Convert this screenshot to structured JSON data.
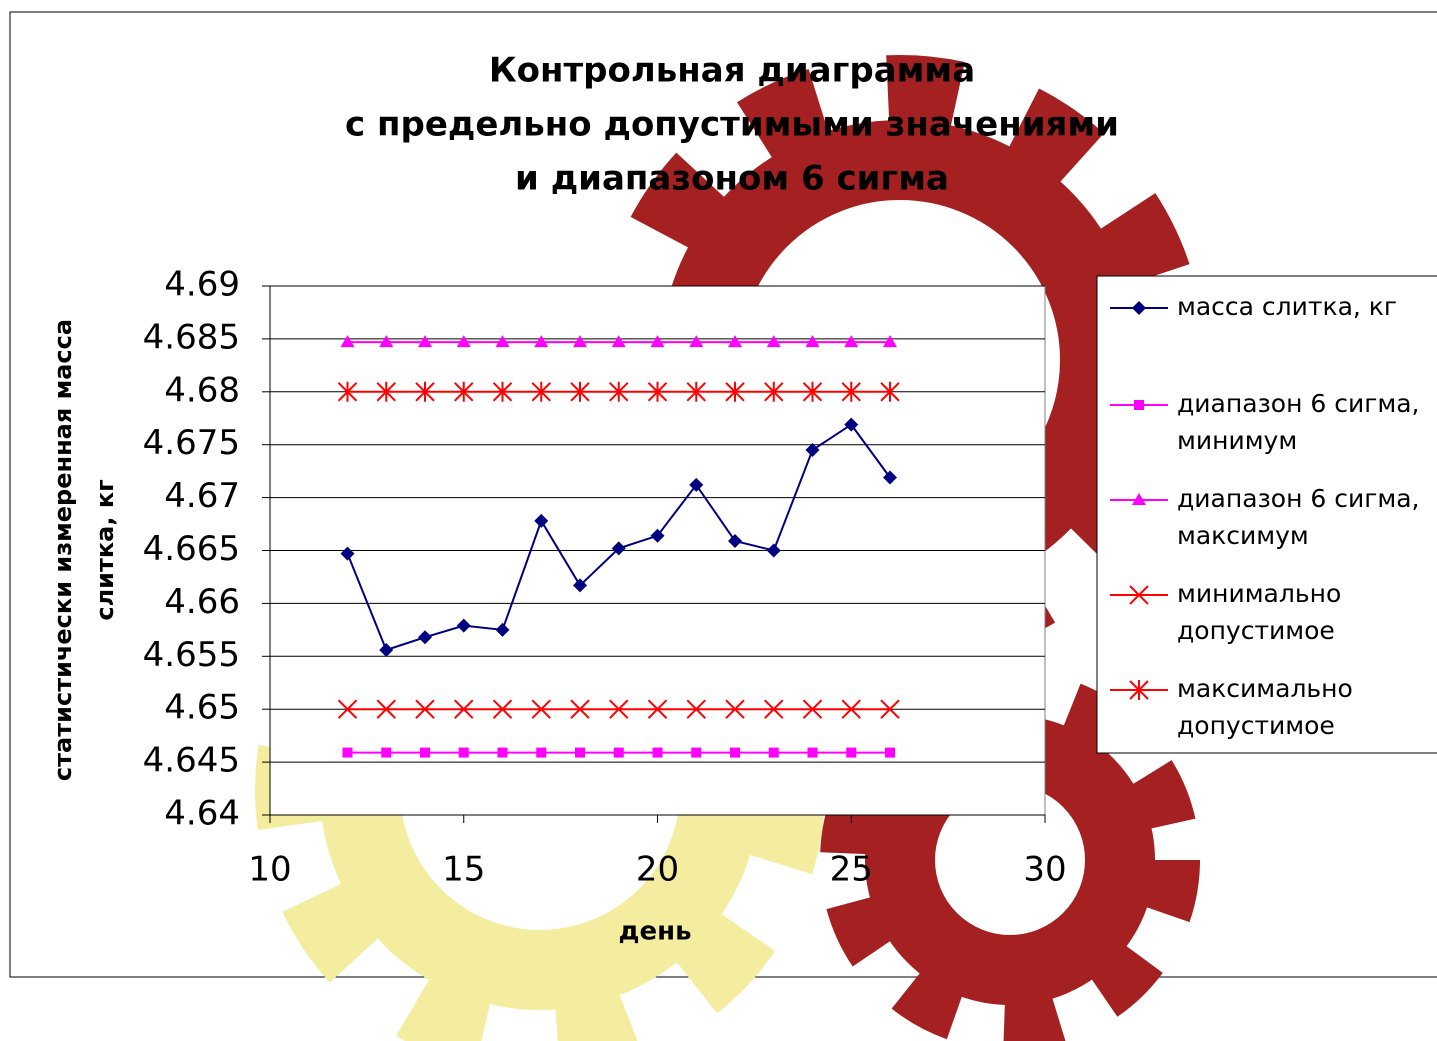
{
  "chart_data": {
    "type": "line",
    "title": [
      "Контрольная диаграмма",
      "с предельно допустимыми значениями",
      "и диапазоном 6 сигма"
    ],
    "x_label": "день",
    "y_label": [
      "статистически измеренная масса",
      "слитка, кг"
    ],
    "x": [
      12,
      13,
      14,
      15,
      16,
      17,
      18,
      19,
      20,
      21,
      22,
      23,
      24,
      25,
      26
    ],
    "series": [
      {
        "name": "масса слитка, кг",
        "color": "#000080",
        "marker": "diamond",
        "values": [
          4.6647,
          4.6556,
          4.6568,
          4.6579,
          4.6575,
          4.6678,
          4.6617,
          4.6652,
          4.6664,
          4.6712,
          4.6659,
          4.665,
          4.6745,
          4.6769,
          4.6719
        ]
      },
      {
        "name": [
          "диапазон 6 сигма,",
          "минимум"
        ],
        "color": "#ff00ff",
        "marker": "square",
        "values": [
          4.6459,
          4.6459,
          4.6459,
          4.6459,
          4.6459,
          4.6459,
          4.6459,
          4.6459,
          4.6459,
          4.6459,
          4.6459,
          4.6459,
          4.6459,
          4.6459,
          4.6459
        ]
      },
      {
        "name": [
          "диапазон 6 сигма,",
          "максимум"
        ],
        "color": "#ff00ff",
        "marker": "triangle",
        "values": [
          4.6847,
          4.6847,
          4.6847,
          4.6847,
          4.6847,
          4.6847,
          4.6847,
          4.6847,
          4.6847,
          4.6847,
          4.6847,
          4.6847,
          4.6847,
          4.6847,
          4.6847
        ]
      },
      {
        "name": [
          "минимально",
          "допустимое"
        ],
        "color": "#ff0000",
        "marker": "x",
        "values": [
          4.65,
          4.65,
          4.65,
          4.65,
          4.65,
          4.65,
          4.65,
          4.65,
          4.65,
          4.65,
          4.65,
          4.65,
          4.65,
          4.65,
          4.65
        ]
      },
      {
        "name": [
          "максимально",
          "допустимое"
        ],
        "color": "#ff0000",
        "marker": "star",
        "values": [
          4.68,
          4.68,
          4.68,
          4.68,
          4.68,
          4.68,
          4.68,
          4.68,
          4.68,
          4.68,
          4.68,
          4.68,
          4.68,
          4.68,
          4.68
        ]
      }
    ],
    "xlim": [
      10,
      30
    ],
    "xticks": [
      10,
      15,
      20,
      25,
      30
    ],
    "ylim": [
      4.64,
      4.69
    ],
    "yticks": [
      4.64,
      4.645,
      4.65,
      4.655,
      4.66,
      4.665,
      4.67,
      4.675,
      4.68,
      4.685,
      4.69
    ],
    "grid": true,
    "legend": "right"
  }
}
